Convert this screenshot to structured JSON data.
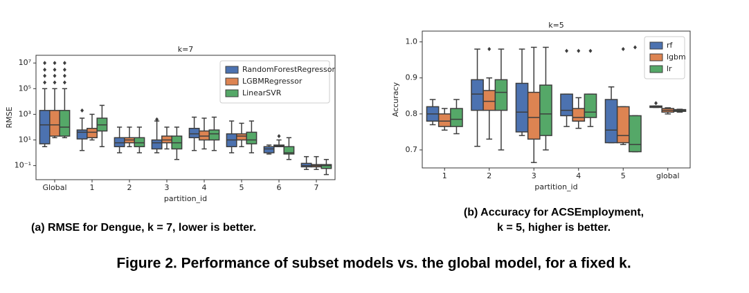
{
  "chart_data": [
    {
      "type": "boxplot",
      "title": "k=7",
      "xlabel": "partition_id",
      "ylabel": "RMSE",
      "yscale": "log",
      "ylim": [
        0.008,
        40000000
      ],
      "yticks": [
        {
          "value": 0.1,
          "label": "10⁻¹"
        },
        {
          "value": 10,
          "label": "10¹"
        },
        {
          "value": 1000,
          "label": "10³"
        },
        {
          "value": 100000,
          "label": "10⁵"
        },
        {
          "value": 10000000,
          "label": "10⁷"
        }
      ],
      "categories": [
        "Global",
        "1",
        "2",
        "3",
        "4",
        "5",
        "6",
        "7"
      ],
      "legend": "upper right",
      "caption": [
        "(a) RMSE for Dengue, k = 7, lower is better."
      ],
      "series": [
        {
          "name": "RandomForestRegressor",
          "color": "#4c72b0",
          "values": [
            {
              "min": 3,
              "q1": 5,
              "median": 150,
              "q3": 2000,
              "max": 100000,
              "outliers": [
                300000,
                1000000,
                3000000,
                10000000
              ]
            },
            {
              "min": 1.5,
              "q1": 12,
              "median": 40,
              "q3": 60,
              "max": 500,
              "outliers": [
                2000
              ]
            },
            {
              "min": 1,
              "q1": 3,
              "median": 6,
              "q3": 15,
              "max": 100,
              "outliers": []
            },
            {
              "min": 1,
              "q1": 2,
              "median": 6,
              "q3": 10,
              "max": 300,
              "outliers": [
                400
              ]
            },
            {
              "min": 1.5,
              "q1": 15,
              "median": 30,
              "q3": 80,
              "max": 600,
              "outliers": []
            },
            {
              "min": 1,
              "q1": 3,
              "median": 10,
              "q3": 30,
              "max": 300,
              "outliers": []
            },
            {
              "min": 0.8,
              "q1": 1,
              "median": 2,
              "q3": 3,
              "max": 4,
              "outliers": []
            },
            {
              "min": 0.05,
              "q1": 0.08,
              "median": 0.1,
              "q3": 0.15,
              "max": 0.5,
              "outliers": []
            }
          ]
        },
        {
          "name": "LGBMRegressor",
          "color": "#dd8452",
          "values": [
            {
              "min": 15,
              "q1": 20,
              "median": 150,
              "q3": 2000,
              "max": 100000,
              "outliers": [
                300000,
                1000000,
                3000000,
                10000000
              ]
            },
            {
              "min": 10,
              "q1": 15,
              "median": 40,
              "q3": 80,
              "max": 1000,
              "outliers": []
            },
            {
              "min": 3,
              "q1": 6,
              "median": 10,
              "q3": 15,
              "max": 100,
              "outliers": []
            },
            {
              "min": 2,
              "q1": 6,
              "median": 10,
              "q3": 20,
              "max": 100,
              "outliers": []
            },
            {
              "min": 2,
              "q1": 10,
              "median": 20,
              "q3": 50,
              "max": 500,
              "outliers": []
            },
            {
              "min": 3,
              "q1": 10,
              "median": 20,
              "q3": 30,
              "max": 200,
              "outliers": []
            },
            {
              "min": 3,
              "q1": 3,
              "median": 3.5,
              "q3": 4,
              "max": 10,
              "outliers": [
                20
              ]
            },
            {
              "min": 0.05,
              "q1": 0.08,
              "median": 0.1,
              "q3": 0.12,
              "max": 0.5,
              "outliers": []
            }
          ]
        },
        {
          "name": "LinearSVR",
          "color": "#55a868",
          "values": [
            {
              "min": 15,
              "q1": 20,
              "median": 100,
              "q3": 2000,
              "max": 100000,
              "outliers": [
                300000,
                1000000,
                3000000,
                10000000
              ]
            },
            {
              "min": 3,
              "q1": 50,
              "median": 150,
              "q3": 500,
              "max": 5000,
              "outliers": []
            },
            {
              "min": 1,
              "q1": 3,
              "median": 6,
              "q3": 15,
              "max": 100,
              "outliers": []
            },
            {
              "min": 0.3,
              "q1": 2,
              "median": 6,
              "q3": 20,
              "max": 100,
              "outliers": []
            },
            {
              "min": 1.5,
              "q1": 10,
              "median": 30,
              "q3": 60,
              "max": 600,
              "outliers": []
            },
            {
              "min": 1,
              "q1": 5,
              "median": 10,
              "q3": 40,
              "max": 300,
              "outliers": []
            },
            {
              "min": 0.3,
              "q1": 0.8,
              "median": 1,
              "q3": 3,
              "max": 15,
              "outliers": []
            },
            {
              "min": 0.02,
              "q1": 0.06,
              "median": 0.1,
              "q3": 0.12,
              "max": 0.3,
              "outliers": []
            }
          ]
        }
      ]
    },
    {
      "type": "boxplot",
      "title": "k=5",
      "xlabel": "partition_id",
      "ylabel": "Accuracy",
      "yscale": "linear",
      "ylim": [
        0.65,
        1.03
      ],
      "yticks": [
        0.7,
        0.8,
        0.9,
        {
          "value": 1,
          "label": "1.0"
        }
      ],
      "categories": [
        "1",
        "2",
        "3",
        "4",
        "5",
        "global"
      ],
      "legend": "upper right",
      "caption": [
        "(b)  Accuracy  for  ACSEmployment,",
        "k = 5, higher is better."
      ],
      "series": [
        {
          "name": "rf",
          "color": "#4c72b0",
          "values": [
            {
              "min": 0.77,
              "q1": 0.78,
              "median": 0.8,
              "q3": 0.82,
              "max": 0.84,
              "outliers": []
            },
            {
              "min": 0.71,
              "q1": 0.81,
              "median": 0.855,
              "q3": 0.895,
              "max": 0.98,
              "outliers": []
            },
            {
              "min": 0.74,
              "q1": 0.75,
              "median": 0.805,
              "q3": 0.885,
              "max": 0.98,
              "outliers": []
            },
            {
              "min": 0.765,
              "q1": 0.795,
              "median": 0.81,
              "q3": 0.855,
              "max": 0.855,
              "outliers": [
                0.975
              ]
            },
            {
              "min": 0.72,
              "q1": 0.72,
              "median": 0.755,
              "q3": 0.84,
              "max": 0.875,
              "outliers": []
            },
            {
              "min": 0.818,
              "q1": 0.818,
              "median": 0.82,
              "q3": 0.822,
              "max": 0.822,
              "outliers": [
                0.83
              ]
            }
          ]
        },
        {
          "name": "lgbm",
          "color": "#dd8452",
          "values": [
            {
              "min": 0.755,
              "q1": 0.765,
              "median": 0.78,
              "q3": 0.8,
              "max": 0.815,
              "outliers": []
            },
            {
              "min": 0.73,
              "q1": 0.81,
              "median": 0.835,
              "q3": 0.865,
              "max": 0.9,
              "outliers": [
                0.98
              ]
            },
            {
              "min": 0.665,
              "q1": 0.73,
              "median": 0.79,
              "q3": 0.86,
              "max": 0.985,
              "outliers": []
            },
            {
              "min": 0.76,
              "q1": 0.78,
              "median": 0.79,
              "q3": 0.815,
              "max": 0.845,
              "outliers": [
                0.975
              ]
            },
            {
              "min": 0.715,
              "q1": 0.72,
              "median": 0.74,
              "q3": 0.82,
              "max": 0.82,
              "outliers": [
                0.98
              ]
            },
            {
              "min": 0.8,
              "q1": 0.805,
              "median": 0.81,
              "q3": 0.815,
              "max": 0.817,
              "outliers": []
            }
          ]
        },
        {
          "name": "lr",
          "color": "#55a868",
          "values": [
            {
              "min": 0.745,
              "q1": 0.765,
              "median": 0.785,
              "q3": 0.815,
              "max": 0.84,
              "outliers": []
            },
            {
              "min": 0.7,
              "q1": 0.81,
              "median": 0.86,
              "q3": 0.895,
              "max": 0.98,
              "outliers": []
            },
            {
              "min": 0.7,
              "q1": 0.74,
              "median": 0.8,
              "q3": 0.88,
              "max": 0.985,
              "outliers": []
            },
            {
              "min": 0.765,
              "q1": 0.79,
              "median": 0.805,
              "q3": 0.855,
              "max": 0.855,
              "outliers": [
                0.975
              ]
            },
            {
              "min": 0.695,
              "q1": 0.695,
              "median": 0.715,
              "q3": 0.795,
              "max": 0.795,
              "outliers": [
                0.985
              ]
            },
            {
              "min": 0.805,
              "q1": 0.807,
              "median": 0.81,
              "q3": 0.812,
              "max": 0.813,
              "outliers": []
            }
          ]
        }
      ]
    }
  ],
  "figure_caption": "Figure 2. Performance of subset models vs. the global model, for a fixed k."
}
